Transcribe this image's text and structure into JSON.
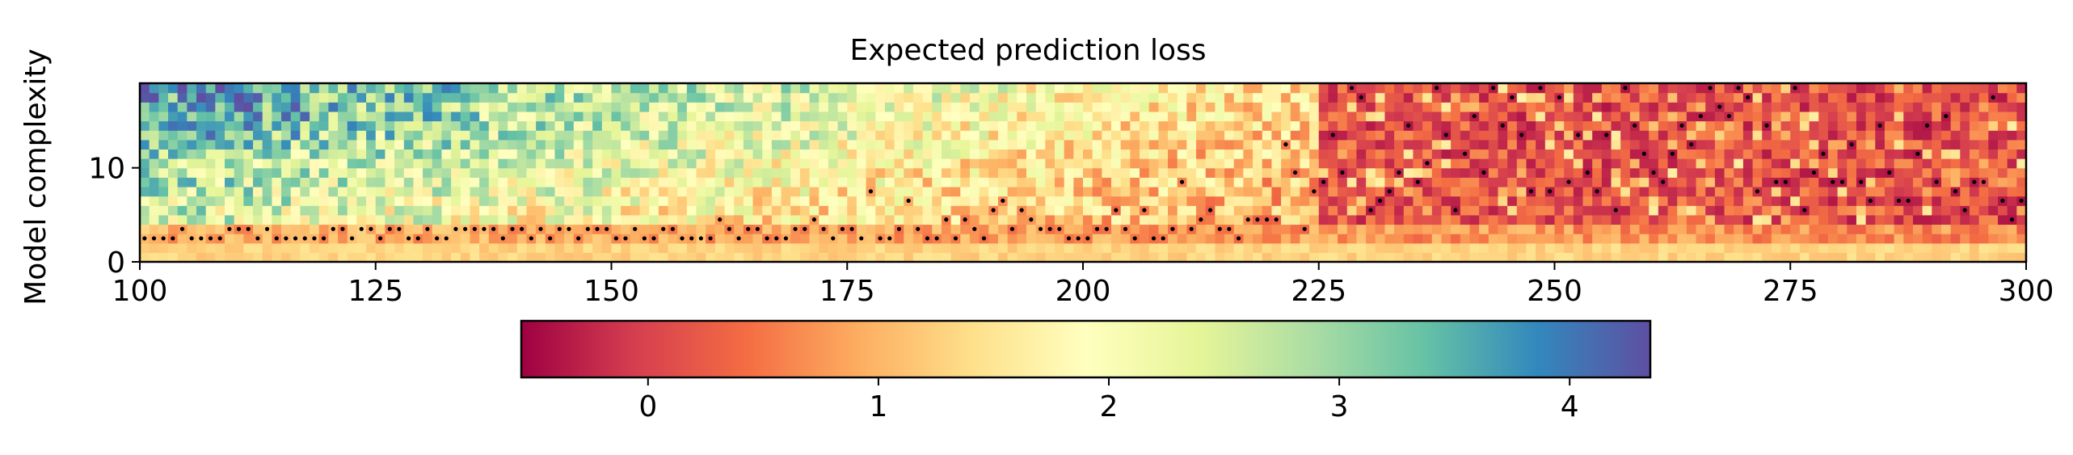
{
  "chart_data": {
    "type": "heatmap",
    "title": "Expected prediction loss",
    "xlabel": "",
    "ylabel": "Model complexity",
    "xlim": [
      100,
      300
    ],
    "ylim": [
      0,
      19
    ],
    "x_ticks": [
      "100",
      "125",
      "150",
      "175",
      "200",
      "225",
      "250",
      "275",
      "300"
    ],
    "y_ticks": [
      "0",
      "10"
    ],
    "x_step": 1,
    "n_complexity_levels": 19,
    "colormap": "Spectral",
    "colormap_stops": [
      "#9e0142",
      "#d53e4f",
      "#f46d43",
      "#fdae61",
      "#fee08b",
      "#ffffbf",
      "#e6f598",
      "#abdda4",
      "#66c2a5",
      "#3288bd",
      "#5e4fa2"
    ],
    "color_range": [
      -0.55,
      4.35
    ],
    "colorbar": {
      "orientation": "horizontal",
      "ticks": [
        "0",
        "1",
        "2",
        "3",
        "4"
      ],
      "range": [
        -0.55,
        4.35
      ]
    },
    "markers": {
      "description": "black dots mark minimum-loss complexity per column",
      "color": "#000000"
    },
    "trend": {
      "summary": "loss high (blue/green) at low x and high complexity, decreasing to low (red) toward x=300; near-zero complexity rows remain moderate (orange)"
    }
  }
}
